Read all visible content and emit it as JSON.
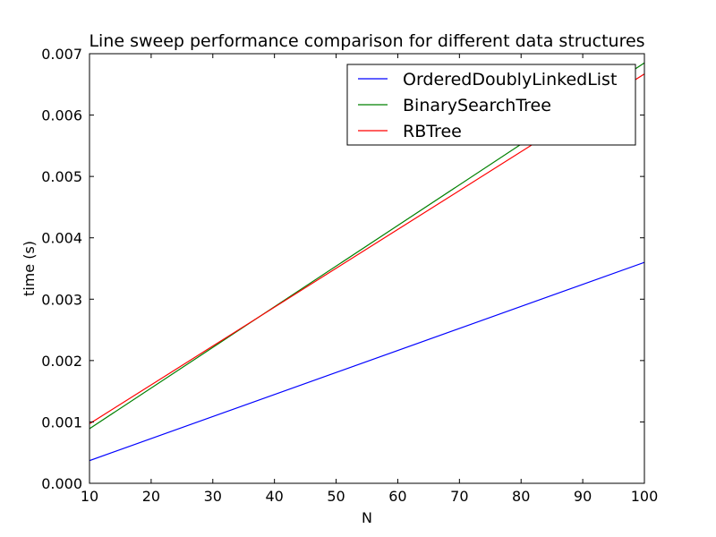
{
  "chart_data": {
    "type": "line",
    "title": "Line sweep performance comparison for different data structures",
    "xlabel": "N",
    "ylabel": "time (s)",
    "xlim": [
      10,
      100
    ],
    "ylim": [
      0,
      0.007
    ],
    "x_ticks": [
      "10",
      "20",
      "30",
      "40",
      "50",
      "60",
      "70",
      "80",
      "90",
      "100"
    ],
    "y_ticks": [
      "0.000",
      "0.001",
      "0.002",
      "0.003",
      "0.004",
      "0.005",
      "0.006",
      "0.007"
    ],
    "grid": false,
    "legend_position": "top-right",
    "series": [
      {
        "name": "OrderedDoublyLinkedList",
        "color": "#0000ff",
        "x": [
          10,
          100
        ],
        "y": [
          0.00037,
          0.0036
        ]
      },
      {
        "name": "BinarySearchTree",
        "color": "#008000",
        "x": [
          10,
          100
        ],
        "y": [
          0.00089,
          0.00685
        ]
      },
      {
        "name": "RBTree",
        "color": "#ff0000",
        "x": [
          10,
          100
        ],
        "y": [
          0.00097,
          0.00667
        ]
      }
    ]
  }
}
